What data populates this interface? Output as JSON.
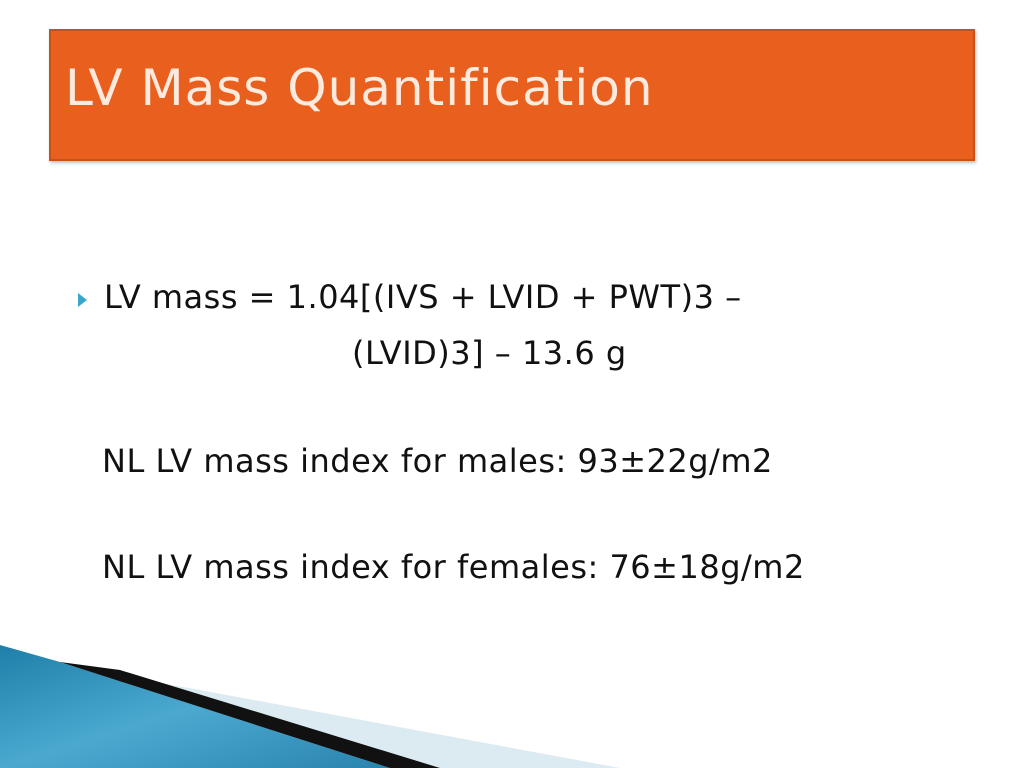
{
  "slide": {
    "title": "LV Mass Quantification",
    "body": [
      "LV mass = 1.04[(IVS + LVID + PWT)3 –",
      "(LVID)3] – 13.6 g",
      "NL LV mass index for males:  93±22g/m2",
      "NL LV mass index for females: 76±18g/m2"
    ]
  }
}
